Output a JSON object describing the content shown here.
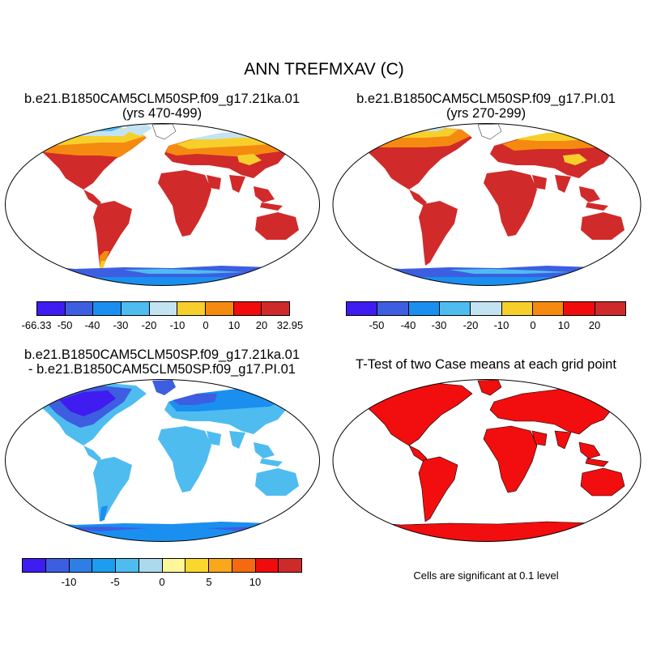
{
  "title": "ANN TREFMXAV (C)",
  "panels": {
    "top_left": {
      "title_line1": "b.e21.B1850CAM5CLM50SP.f09_g17.21ka.01",
      "title_line2": "(yrs 470-499)",
      "colorbar": {
        "colors": [
          "#3f1cf0",
          "#3d5ee0",
          "#1a8ff0",
          "#4fbcf0",
          "#c3e3f2",
          "#f7cf2c",
          "#f58a10",
          "#f00c0c",
          "#cf2a2a"
        ],
        "labels": [
          "-66.33",
          "-50",
          "-40",
          "-30",
          "-20",
          "-10",
          "0",
          "10",
          "20",
          "32.95"
        ]
      }
    },
    "top_right": {
      "title_line1": "b.e21.B1850CAM5CLM50SP.f09_g17.PI.01",
      "title_line2": "(yrs 270-299)",
      "colorbar": {
        "colors": [
          "#3f1cf0",
          "#3d5ee0",
          "#1a8ff0",
          "#4fbcf0",
          "#c3e3f2",
          "#f7cf2c",
          "#f58a10",
          "#f00c0c",
          "#cf2a2a"
        ],
        "labels": [
          "-50",
          "-40",
          "-30",
          "-20",
          "-10",
          "0",
          "10",
          "20"
        ]
      }
    },
    "bottom_left": {
      "title_line1": "b.e21.B1850CAM5CLM50SP.f09_g17.21ka.01",
      "title_line2": "- b.e21.B1850CAM5CLM50SP.f09_g17.PI.01",
      "colorbar": {
        "colors": [
          "#3f1cf0",
          "#3d5ee0",
          "#2e7ee6",
          "#1c9df0",
          "#4fbcf0",
          "#abd9ee",
          "#fff69a",
          "#fbd62c",
          "#f8a81a",
          "#f56a10",
          "#f00c0c",
          "#cf2a2a"
        ],
        "labels": [
          "-10",
          "-5",
          "0",
          "5",
          "10"
        ]
      }
    },
    "bottom_right": {
      "title_line1": "T-Test of two Case means at each grid point",
      "note": "Cells are significant at 0.1 level"
    }
  },
  "map_colors": {
    "warm_land": "#d12a2a",
    "hot_mid": "#f00c0c",
    "mid_orange": "#f58a10",
    "yellow": "#f7cf2c",
    "pale_blue": "#c3e3f2",
    "light_blue": "#4fbcf0",
    "blue": "#1a8ff0",
    "deep_blue": "#3d5ee0",
    "violet": "#3f1cf0",
    "sig_red": "#f20e0e"
  }
}
